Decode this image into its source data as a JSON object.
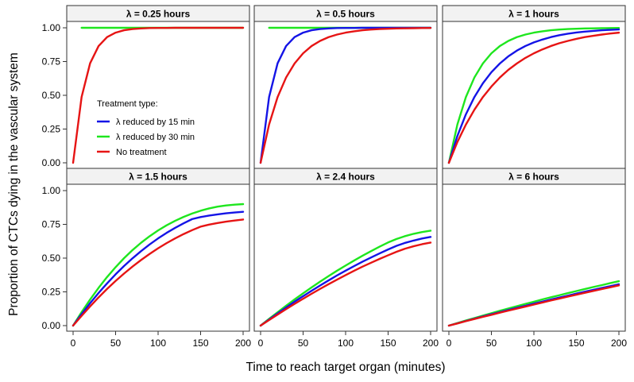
{
  "figure": {
    "xlabel": "Time to reach target organ (minutes)",
    "ylabel": "Proportion of CTCs dying in the vascular system",
    "legend": {
      "title": "Treatment type:",
      "placement": "inside first panel, lower-right",
      "entries": [
        {
          "name": "λ reduced by 15 min",
          "color": "#1414e6"
        },
        {
          "name": "λ reduced by 30 min",
          "color": "#1ee61e"
        },
        {
          "name": "No treatment",
          "color": "#e61414"
        }
      ]
    }
  },
  "chart_data": {
    "type": "line",
    "layout": "facet grid 2 rows × 3 columns",
    "xlim": [
      0,
      200
    ],
    "ylim": [
      0,
      1
    ],
    "x_ticks": [
      0,
      50,
      100,
      150,
      200
    ],
    "x_tick_labels": [
      "0",
      "50",
      "100",
      "150",
      "200"
    ],
    "y_ticks": [
      0,
      0.25,
      0.5,
      0.75,
      1
    ],
    "y_tick_labels": [
      "0.00",
      "0.25",
      "0.50",
      "0.75",
      "1.00"
    ],
    "grid": false,
    "x": [
      0,
      10,
      20,
      30,
      40,
      50,
      60,
      70,
      80,
      90,
      100,
      110,
      120,
      130,
      140,
      150,
      160,
      170,
      180,
      190,
      200
    ],
    "panels": [
      {
        "title": "λ =  0.25 hours",
        "series": [
          {
            "name": "λ reduced by 15 min",
            "values": [
              null,
              null,
              null,
              null,
              null,
              null,
              null,
              null,
              null,
              null,
              null,
              null,
              null,
              null,
              null,
              null,
              null,
              null,
              null,
              null,
              null
            ]
          },
          {
            "name": "λ reduced by 30 min",
            "values": [
              null,
              1.0,
              1.0,
              1.0,
              1.0,
              1.0,
              1.0,
              1.0,
              1.0,
              1.0,
              1.0,
              1.0,
              1.0,
              1.0,
              1.0,
              1.0,
              1.0,
              1.0,
              1.0,
              1.0,
              1.0
            ]
          },
          {
            "name": "No treatment",
            "values": [
              0.0,
              0.487,
              0.737,
              0.865,
              0.931,
              0.964,
              0.982,
              0.991,
              0.995,
              0.998,
              0.999,
              0.999,
              1.0,
              1.0,
              1.0,
              1.0,
              1.0,
              1.0,
              1.0,
              1.0,
              1.0
            ]
          }
        ]
      },
      {
        "title": "λ =  0.5 hours",
        "series": [
          {
            "name": "λ reduced by 15 min",
            "values": [
              0.0,
              0.487,
              0.737,
              0.865,
              0.931,
              0.964,
              0.982,
              0.991,
              0.995,
              0.998,
              0.999,
              0.999,
              1.0,
              1.0,
              1.0,
              1.0,
              1.0,
              1.0,
              1.0,
              1.0,
              1.0
            ]
          },
          {
            "name": "λ reduced by 30 min",
            "values": [
              null,
              1.0,
              1.0,
              1.0,
              1.0,
              1.0,
              1.0,
              1.0,
              1.0,
              1.0,
              1.0,
              1.0,
              1.0,
              1.0,
              1.0,
              1.0,
              1.0,
              1.0,
              1.0,
              1.0,
              1.0
            ]
          },
          {
            "name": "No treatment",
            "values": [
              0.0,
              0.284,
              0.487,
              0.632,
              0.736,
              0.811,
              0.865,
              0.903,
              0.931,
              0.95,
              0.964,
              0.974,
              0.982,
              0.987,
              0.991,
              0.993,
              0.995,
              0.996,
              0.997,
              0.998,
              0.999
            ]
          }
        ]
      },
      {
        "title": "λ =  1 hours",
        "series": [
          {
            "name": "λ reduced by 15 min",
            "values": [
              0.0,
              0.199,
              0.359,
              0.487,
              0.589,
              0.671,
              0.736,
              0.789,
              0.831,
              0.865,
              0.892,
              0.913,
              0.931,
              0.945,
              0.956,
              0.965,
              0.972,
              0.977,
              0.982,
              0.985,
              0.988
            ]
          },
          {
            "name": "λ reduced by 30 min",
            "values": [
              0.0,
              0.284,
              0.487,
              0.632,
              0.736,
              0.811,
              0.865,
              0.903,
              0.931,
              0.95,
              0.964,
              0.974,
              0.982,
              0.987,
              0.991,
              0.993,
              0.995,
              0.996,
              0.997,
              0.998,
              0.999
            ]
          },
          {
            "name": "No treatment",
            "values": [
              0.0,
              0.154,
              0.283,
              0.393,
              0.487,
              0.565,
              0.632,
              0.689,
              0.736,
              0.777,
              0.811,
              0.84,
              0.865,
              0.886,
              0.903,
              0.918,
              0.931,
              0.941,
              0.95,
              0.958,
              0.964
            ]
          }
        ]
      },
      {
        "title": "λ =  1.5 hours",
        "series": [
          {
            "name": "λ reduced by 15 min",
            "values": [
              0.0,
              0.085,
              0.166,
              0.242,
              0.313,
              0.38,
              0.442,
              0.499,
              0.552,
              0.601,
              0.646,
              0.687,
              0.724,
              0.758,
              0.789,
              0.804,
              0.815,
              0.824,
              0.832,
              0.838,
              0.843
            ]
          },
          {
            "name": "λ reduced by 30 min",
            "values": [
              0.0,
              0.1,
              0.193,
              0.28,
              0.36,
              0.433,
              0.5,
              0.56,
              0.614,
              0.662,
              0.705,
              0.743,
              0.776,
              0.805,
              0.83,
              0.851,
              0.868,
              0.881,
              0.89,
              0.896,
              0.9
            ]
          },
          {
            "name": "No treatment",
            "values": [
              0.0,
              0.072,
              0.142,
              0.209,
              0.272,
              0.331,
              0.386,
              0.438,
              0.486,
              0.531,
              0.573,
              0.611,
              0.646,
              0.678,
              0.707,
              0.733,
              0.748,
              0.76,
              0.77,
              0.778,
              0.786
            ]
          }
        ]
      },
      {
        "title": "λ =  2.4 hours",
        "series": [
          {
            "name": "λ reduced by 15 min",
            "values": [
              0.0,
              0.045,
              0.09,
              0.134,
              0.177,
              0.218,
              0.258,
              0.297,
              0.335,
              0.372,
              0.407,
              0.441,
              0.474,
              0.505,
              0.535,
              0.564,
              0.591,
              0.613,
              0.63,
              0.645,
              0.657
            ]
          },
          {
            "name": "λ reduced by 30 min",
            "values": [
              0.0,
              0.05,
              0.099,
              0.147,
              0.194,
              0.239,
              0.283,
              0.326,
              0.367,
              0.407,
              0.445,
              0.482,
              0.518,
              0.552,
              0.585,
              0.616,
              0.642,
              0.663,
              0.68,
              0.693,
              0.703
            ]
          },
          {
            "name": "No treatment",
            "values": [
              0.0,
              0.041,
              0.082,
              0.122,
              0.161,
              0.199,
              0.236,
              0.272,
              0.307,
              0.341,
              0.374,
              0.406,
              0.437,
              0.466,
              0.494,
              0.521,
              0.547,
              0.57,
              0.588,
              0.603,
              0.615
            ]
          }
        ]
      },
      {
        "title": "λ =  6 hours",
        "series": [
          {
            "name": "λ reduced by 15 min",
            "values": [
              0.0,
              0.017,
              0.034,
              0.051,
              0.068,
              0.084,
              0.1,
              0.116,
              0.132,
              0.147,
              0.163,
              0.178,
              0.193,
              0.208,
              0.222,
              0.237,
              0.251,
              0.265,
              0.279,
              0.292,
              0.306
            ]
          },
          {
            "name": "λ reduced by 30 min",
            "values": [
              0.0,
              0.019,
              0.038,
              0.056,
              0.074,
              0.092,
              0.11,
              0.127,
              0.144,
              0.161,
              0.177,
              0.194,
              0.21,
              0.225,
              0.241,
              0.256,
              0.271,
              0.286,
              0.3,
              0.315,
              0.329
            ]
          },
          {
            "name": "No treatment",
            "values": [
              0.0,
              0.016,
              0.033,
              0.049,
              0.065,
              0.08,
              0.096,
              0.111,
              0.126,
              0.141,
              0.156,
              0.171,
              0.186,
              0.2,
              0.215,
              0.229,
              0.243,
              0.257,
              0.271,
              0.284,
              0.298
            ]
          }
        ]
      }
    ]
  }
}
